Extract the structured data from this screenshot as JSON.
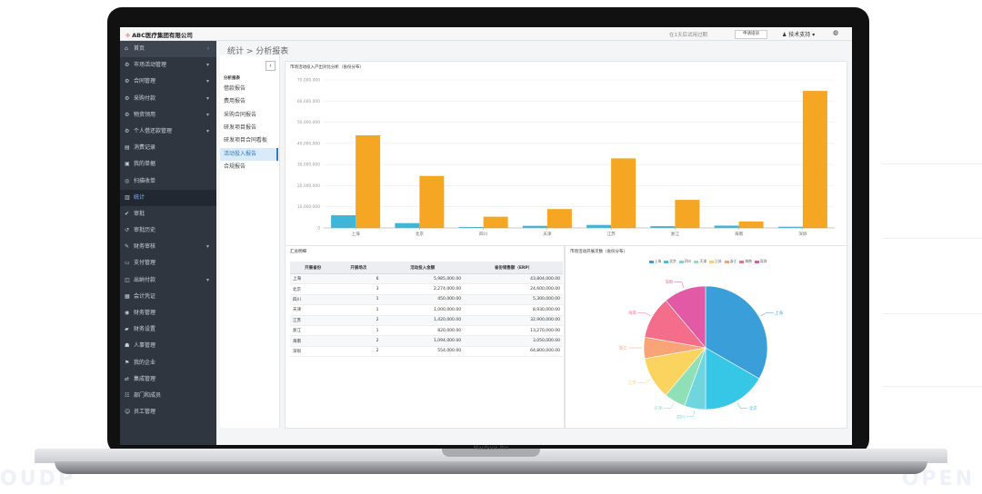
{
  "app": {
    "title": "ABC医疗集团有限公司"
  },
  "topbar": {
    "trial_text": "在1天后试用过期",
    "upgrade_label": "申请培训",
    "support_label": "技术支持",
    "support_caret": "▾"
  },
  "sidebar": {
    "items": [
      {
        "icon": "home-icon",
        "glyph": "⌂",
        "label": "首页",
        "arrow": "‹"
      },
      {
        "icon": "gear-icon",
        "glyph": "⚙",
        "label": "市场活动管理",
        "arrow": "▾"
      },
      {
        "icon": "gear-icon",
        "glyph": "⚙",
        "label": "合同管理",
        "arrow": "▾"
      },
      {
        "icon": "gear-icon",
        "glyph": "⚙",
        "label": "采购付款",
        "arrow": "▾"
      },
      {
        "icon": "gear-icon",
        "glyph": "⚙",
        "label": "物资领用",
        "arrow": "▾"
      },
      {
        "icon": "gear-icon",
        "glyph": "⚙",
        "label": "个人借还款管理",
        "arrow": "▾"
      },
      {
        "icon": "document-icon",
        "glyph": "▤",
        "label": "消费记录",
        "arrow": ""
      },
      {
        "icon": "briefcase-icon",
        "glyph": "▣",
        "label": "我的单据",
        "arrow": ""
      },
      {
        "icon": "scan-icon",
        "glyph": "◎",
        "label": "扫描收单",
        "arrow": ""
      },
      {
        "icon": "chart-icon",
        "glyph": "▥",
        "label": "统计",
        "arrow": ""
      },
      {
        "icon": "check-icon",
        "glyph": "✔",
        "label": "审批",
        "arrow": ""
      },
      {
        "icon": "history-icon",
        "glyph": "↺",
        "label": "审批历史",
        "arrow": ""
      },
      {
        "icon": "edit-icon",
        "glyph": "✎",
        "label": "财务审核",
        "arrow": "▾"
      },
      {
        "icon": "card-icon",
        "glyph": "▭",
        "label": "支付管理",
        "arrow": ""
      },
      {
        "icon": "invoice-icon",
        "glyph": "◫",
        "label": "出纳付款",
        "arrow": "▾"
      },
      {
        "icon": "voucher-icon",
        "glyph": "▦",
        "label": "会计凭证",
        "arrow": ""
      },
      {
        "icon": "finance-icon",
        "glyph": "◉",
        "label": "财务管理",
        "arrow": ""
      },
      {
        "icon": "book-icon",
        "glyph": "▰",
        "label": "财务设置",
        "arrow": ""
      },
      {
        "icon": "users-icon",
        "glyph": "☗",
        "label": "人事管理",
        "arrow": ""
      },
      {
        "icon": "flag-icon",
        "glyph": "⚑",
        "label": "我的企业",
        "arrow": ""
      },
      {
        "icon": "integration-icon",
        "glyph": "⇄",
        "label": "集成管理",
        "arrow": ""
      },
      {
        "icon": "org-icon",
        "glyph": "☷",
        "label": "部门和成员",
        "arrow": ""
      },
      {
        "icon": "staff-icon",
        "glyph": "☺",
        "label": "员工管理",
        "arrow": ""
      }
    ]
  },
  "breadcrumb": "统计 > 分析报表",
  "subnav": {
    "title": "分析报表",
    "collapse": "‹",
    "items": [
      "借款报告",
      "费用报告",
      "采购合同报告",
      "研发项目报告",
      "研发项目合同看板",
      "活动投入报告",
      "合规报告"
    ]
  },
  "bar_panel": {
    "title": "市场活动投入产出对比分析（省份分布）"
  },
  "table_panel": {
    "title": "汇总明细",
    "headers": [
      "开展省份",
      "开展场次",
      "活动投入金额",
      "省份销售额（ERP）"
    ],
    "rows": [
      [
        "上海",
        "6",
        "5,985,000.00",
        "43,804,000.00"
      ],
      [
        "北京",
        "3",
        "2,274,000.00",
        "24,600,000.00"
      ],
      [
        "四川",
        "1",
        "450,000.00",
        "5,300,000.00"
      ],
      [
        "天津",
        "1",
        "1,000,000.00",
        "8,930,000.00"
      ],
      [
        "江苏",
        "2",
        "1,420,000.00",
        "32,900,000.00"
      ],
      [
        "浙江",
        "1",
        "820,000.00",
        "13,270,000.00"
      ],
      [
        "海南",
        "2",
        "1,094,000.00",
        "3,050,000.00"
      ],
      [
        "深圳",
        "2",
        "554,000.00",
        "64,800,000.00"
      ]
    ]
  },
  "pie_panel": {
    "title": "市场活动开展次数（省份分布）"
  },
  "chart_data": [
    {
      "type": "bar",
      "title": "市场活动投入产出对比分析（省份分布）",
      "categories": [
        "上海",
        "北京",
        "四川",
        "天津",
        "江苏",
        "浙江",
        "海南",
        "深圳"
      ],
      "series": [
        {
          "values": [
            5985000,
            2274000,
            450000,
            1000000,
            1420000,
            820000,
            1094000,
            554000
          ],
          "color": "#3fb6d8"
        },
        {
          "values": [
            43804000,
            24600000,
            5300000,
            8930000,
            32900000,
            13270000,
            3050000,
            64800000
          ],
          "color": "#f5a623"
        }
      ],
      "yticks": [
        "0",
        "10,000,000",
        "20,000,000",
        "30,000,000",
        "40,000,000",
        "50,000,000",
        "60,000,000",
        "70,000,000"
      ],
      "ylim": [
        0,
        70000000
      ],
      "grid": true
    },
    {
      "type": "pie",
      "title": "市场活动开展次数（省份分布）",
      "legend_position": "top",
      "slices": [
        {
          "label": "上海",
          "value": 6,
          "color": "#3a9fd8"
        },
        {
          "label": "北京",
          "value": 3,
          "color": "#36c6e6"
        },
        {
          "label": "四川",
          "value": 1,
          "color": "#6fd6e0"
        },
        {
          "label": "天津",
          "value": 1,
          "color": "#8fe0b6"
        },
        {
          "label": "江苏",
          "value": 2,
          "color": "#fbd35f"
        },
        {
          "label": "浙江",
          "value": 1,
          "color": "#f8a378"
        },
        {
          "label": "海南",
          "value": 2,
          "color": "#f46e8c"
        },
        {
          "label": "深圳",
          "value": 2,
          "color": "#e25aa6"
        }
      ]
    }
  ],
  "background": {
    "left_word": "OUDP",
    "right_word": "OPEN"
  },
  "device": {
    "label": "MacBook Pro"
  }
}
